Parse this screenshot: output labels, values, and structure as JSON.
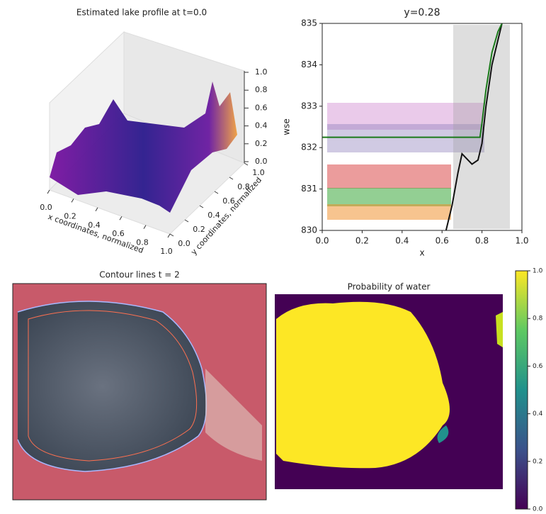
{
  "chart_data": [
    {
      "type": "surface3d",
      "title": "Estimated lake profile at t=0.0",
      "xlabel": "x coordinates, normalized",
      "ylabel": "y coordinates, normalized",
      "xlim": [
        0,
        1
      ],
      "ylim": [
        0,
        1
      ],
      "zlim": [
        0,
        1
      ],
      "xticks": [
        {
          "value": 0,
          "label": "0.0"
        },
        0.2,
        0.4,
        0.6,
        0.8,
        {
          "value": 1,
          "label": "1.0"
        }
      ],
      "yticks": [
        {
          "value": 0,
          "label": "0.0"
        },
        0.2,
        0.4,
        0.6,
        0.8,
        {
          "value": 1,
          "label": "1.0"
        }
      ],
      "zticks": [
        {
          "value": 0,
          "label": "0.0"
        },
        0.2,
        0.4,
        0.6,
        0.8,
        {
          "value": 1,
          "label": "1.0"
        }
      ]
    },
    {
      "type": "scatter",
      "title": "y=0.28",
      "xlabel": "x",
      "ylabel": "wse",
      "xlim": [
        0,
        1
      ],
      "ylim": [
        830,
        835
      ],
      "xticks": [
        {
          "value": 0,
          "label": "0.0"
        },
        0.2,
        0.4,
        0.6,
        0.8,
        {
          "value": 1,
          "label": "1.0"
        }
      ],
      "yticks": [
        830,
        831,
        832,
        833,
        834,
        835
      ],
      "lines": [
        {
          "color": "#111111",
          "x": [
            0.62,
            0.65,
            0.68,
            0.7,
            0.72,
            0.75,
            0.78,
            0.8,
            0.82,
            0.85,
            0.88,
            0.9
          ],
          "y": [
            830,
            830.6,
            831.4,
            831.85,
            831.75,
            831.6,
            831.7,
            832.1,
            833,
            834,
            834.6,
            835
          ]
        },
        {
          "color": "#1a7a1a",
          "x": [
            0,
            0.79,
            0.8,
            0.82,
            0.85,
            0.88,
            0.9
          ],
          "y": [
            832.25,
            832.25,
            832.6,
            833.4,
            834.3,
            834.8,
            835
          ]
        }
      ]
    },
    {
      "type": "image",
      "title": "Contour lines t = 2"
    },
    {
      "type": "heatmap",
      "title": "Probability of water",
      "clim": [
        0,
        1
      ],
      "cticks": [
        {
          "value": 0,
          "label": "0.0"
        },
        0.2,
        0.4,
        0.6,
        0.8,
        {
          "value": 1,
          "label": "1.0"
        }
      ]
    }
  ]
}
